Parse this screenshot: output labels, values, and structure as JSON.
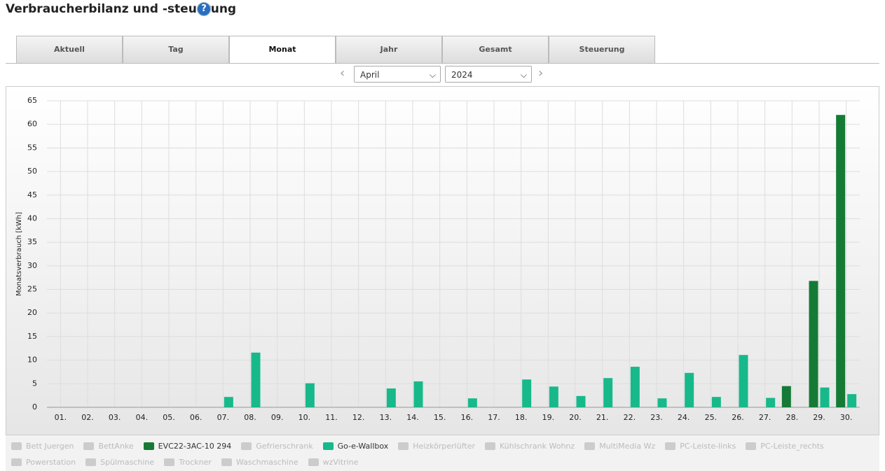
{
  "header": {
    "title": "Verbraucherbilanz und -steuerung"
  },
  "tabs": [
    "Aktuell",
    "Tag",
    "Monat",
    "Jahr",
    "Gesamt",
    "Steuerung"
  ],
  "active_tab": 2,
  "selectors": {
    "month": "April",
    "year": "2024"
  },
  "chart_data": {
    "type": "bar",
    "y_label": "Monatsverbrauch [kWh]",
    "categories": [
      "01.",
      "02.",
      "03.",
      "04.",
      "05.",
      "06.",
      "07.",
      "08.",
      "09.",
      "10.",
      "11.",
      "12.",
      "13.",
      "14.",
      "15.",
      "16.",
      "17.",
      "18.",
      "19.",
      "20.",
      "21.",
      "22.",
      "23.",
      "24.",
      "25.",
      "26.",
      "27.",
      "28.",
      "29.",
      "30."
    ],
    "ylim": [
      0,
      65
    ],
    "yticks": [
      0,
      5,
      10,
      15,
      20,
      25,
      30,
      35,
      40,
      45,
      50,
      55,
      60,
      65
    ],
    "grid": true,
    "series": [
      {
        "name": "Bett Juergen",
        "visible": false
      },
      {
        "name": "BettAnke",
        "visible": false
      },
      {
        "name": "EVC22-3AC-10 294",
        "color": "#157a35",
        "visible": true,
        "values": [
          null,
          null,
          null,
          null,
          null,
          null,
          null,
          null,
          null,
          null,
          null,
          null,
          null,
          null,
          null,
          null,
          null,
          null,
          null,
          null,
          null,
          null,
          null,
          null,
          null,
          null,
          null,
          4.5,
          26.8,
          62
        ]
      },
      {
        "name": "Gefrierschrank",
        "visible": false
      },
      {
        "name": "Go-e-Wallbox",
        "color": "#17b98a",
        "visible": true,
        "values": [
          null,
          null,
          null,
          null,
          null,
          null,
          2.2,
          11.6,
          null,
          5.1,
          null,
          null,
          4.0,
          5.5,
          null,
          1.9,
          null,
          5.9,
          4.4,
          2.4,
          6.2,
          8.6,
          1.9,
          7.3,
          2.2,
          11.1,
          2.0,
          null,
          4.2,
          2.8
        ]
      },
      {
        "name": "Heizkörperlüfter",
        "visible": false
      },
      {
        "name": "Kühlschrank Wohnz",
        "visible": false
      },
      {
        "name": "MultiMedia Wz",
        "visible": false
      },
      {
        "name": "PC-Leiste-links",
        "visible": false
      },
      {
        "name": "PC-Leiste_rechts",
        "visible": false
      },
      {
        "name": "Powerstation",
        "visible": false
      },
      {
        "name": "Spülmaschine",
        "visible": false
      },
      {
        "name": "Trockner",
        "visible": false
      },
      {
        "name": "Waschmaschine",
        "visible": false
      },
      {
        "name": "wzVitrine",
        "visible": false
      }
    ]
  }
}
